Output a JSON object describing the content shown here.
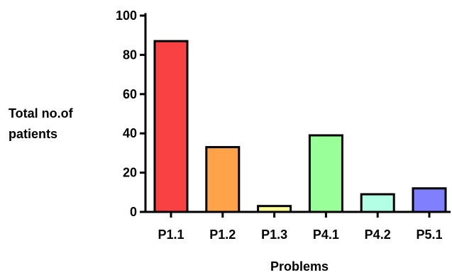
{
  "chart_data": {
    "type": "bar",
    "title": "",
    "ylabel_lines": [
      "Total no.of",
      "patients"
    ],
    "xlabel": "Problems",
    "categories": [
      "P1.1",
      "P1.2",
      "P1.3",
      "P4.1",
      "P4.2",
      "P5.1"
    ],
    "values": [
      87,
      33,
      3,
      39,
      9,
      12
    ],
    "ylim": [
      0,
      100
    ],
    "yticks": [
      0,
      20,
      40,
      60,
      80,
      100
    ],
    "ytick_labels": [
      "0",
      "20",
      "40",
      "60",
      "80",
      "100"
    ],
    "colors": [
      "#f94144",
      "#ffa34a",
      "#ffff99",
      "#99ff99",
      "#b3ffe6",
      "#8080ff"
    ],
    "grid": false,
    "legend": "none"
  }
}
